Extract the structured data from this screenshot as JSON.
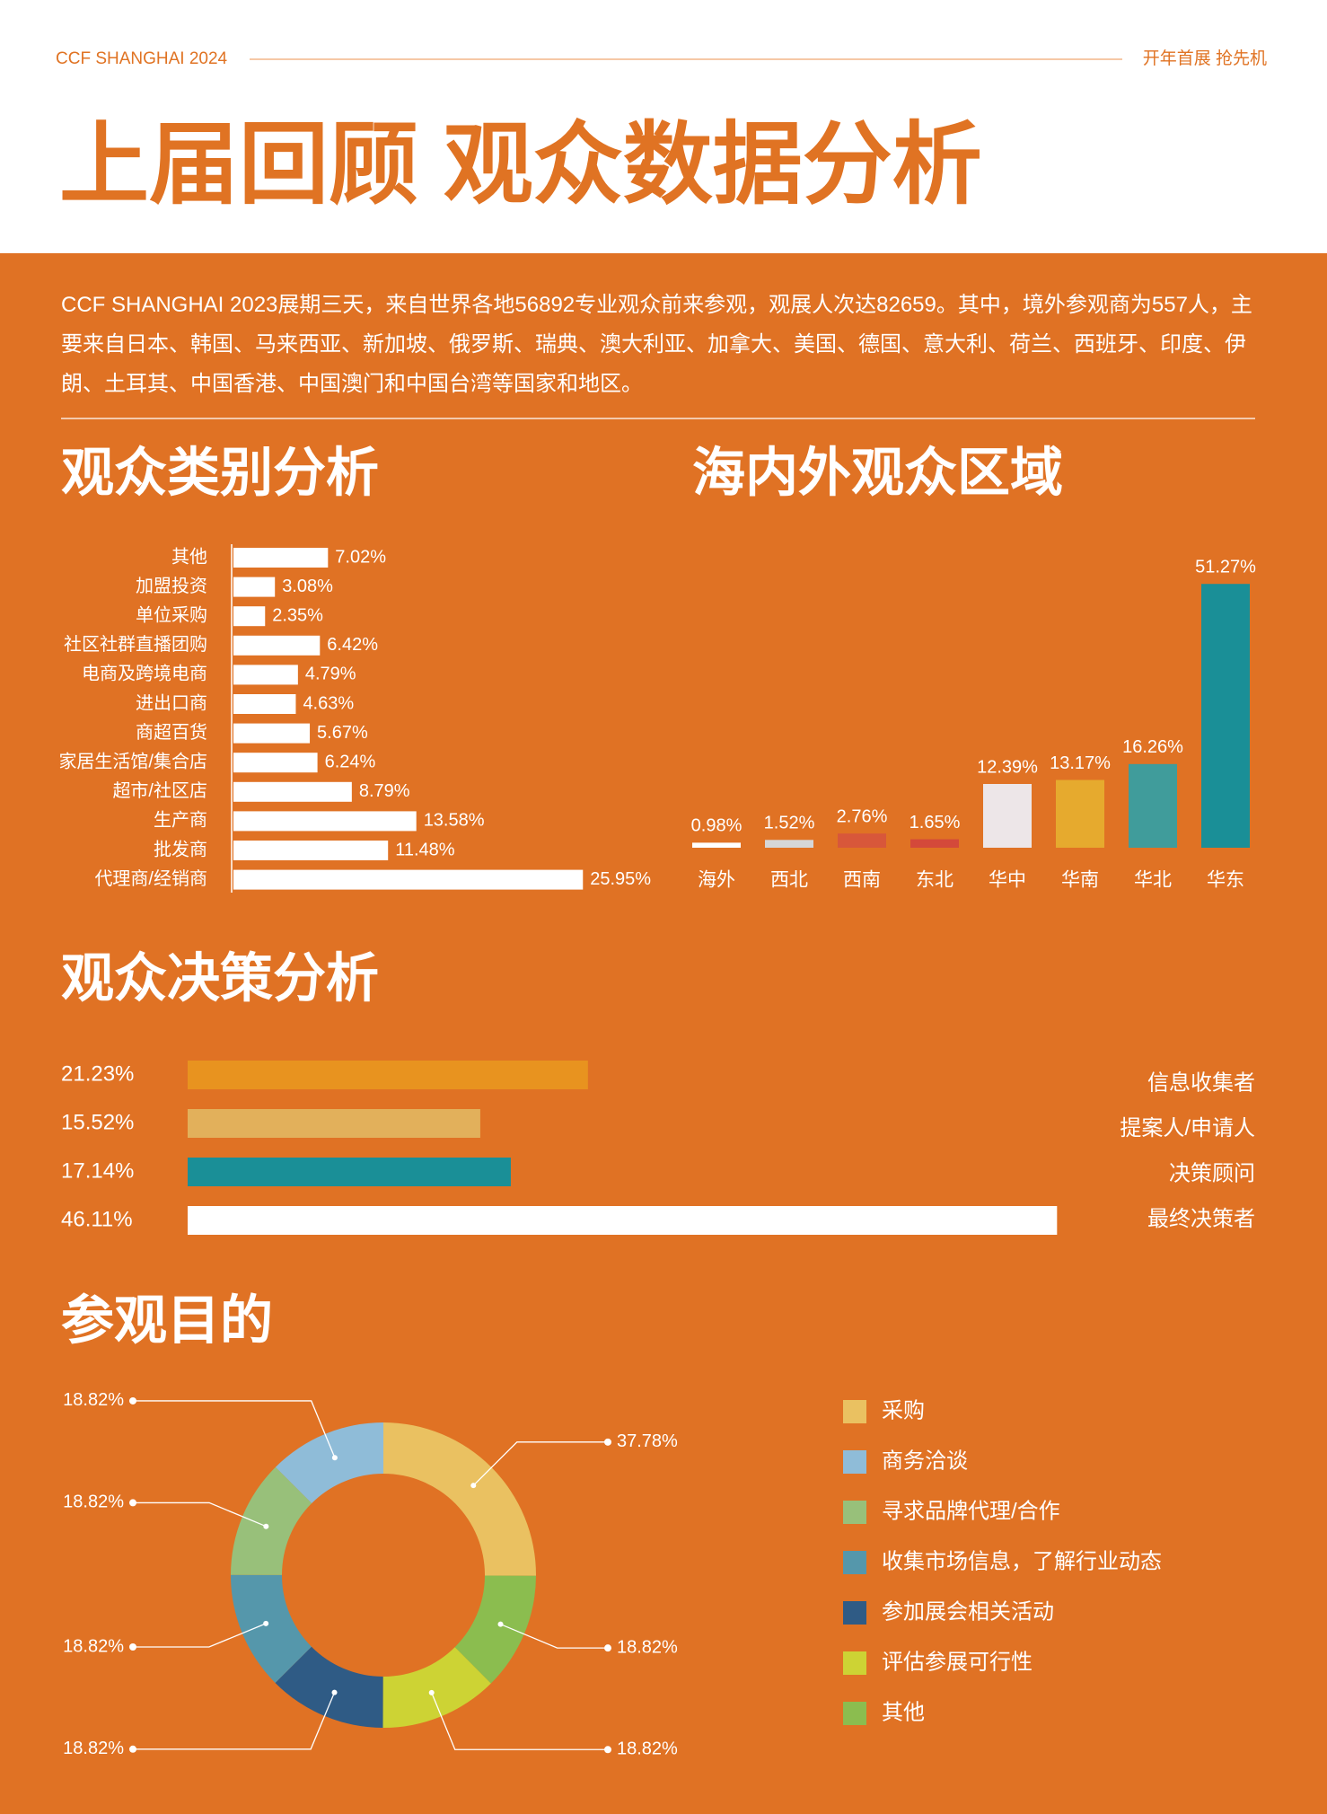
{
  "header": {
    "brand": "CCF SHANGHAI 2024",
    "slogan": "开年首展 抢先机",
    "title": "上届回顾 观众数据分析"
  },
  "intro": "CCF SHANGHAI 2023展期三天，来自世界各地56892专业观众前来参观，观展人次达82659。其中，境外参观商为557人，主要来自日本、韩国、马来西亚、新加坡、俄罗斯、瑞典、澳大利亚、加拿大、美国、德国、意大利、荷兰、西班牙、印度、伊朗、土耳其、中国香港、中国澳门和中国台湾等国家和地区。",
  "chart_data": [
    {
      "type": "barh",
      "title": "观众类别分析",
      "categories": [
        "其他",
        "加盟投资",
        "单位采购",
        "社区社群直播团购",
        "电商及跨境电商",
        "进出口商",
        "商超百货",
        "家居生活馆/集合店",
        "超市/社区店",
        "生产商",
        "批发商",
        "代理商/经销商"
      ],
      "values": [
        7.02,
        3.08,
        2.35,
        6.42,
        4.79,
        4.63,
        5.67,
        6.24,
        8.79,
        13.58,
        11.48,
        25.95
      ],
      "value_labels": [
        "7.02%",
        "3.08%",
        "2.35%",
        "6.42%",
        "4.79%",
        "4.63%",
        "5.67%",
        "6.24%",
        "8.79%",
        "13.58%",
        "11.48%",
        "25.95%"
      ],
      "color": "#ffffff"
    },
    {
      "type": "bar",
      "title": "海内外观众区域",
      "categories": [
        "海外",
        "西北",
        "西南",
        "东北",
        "华中",
        "华南",
        "华北",
        "华东"
      ],
      "values": [
        0.98,
        1.52,
        2.76,
        1.65,
        12.39,
        13.17,
        16.26,
        51.27
      ],
      "value_labels": [
        "0.98%",
        "1.52%",
        "2.76%",
        "1.65%",
        "12.39%",
        "13.17%",
        "16.26%",
        "51.27%"
      ],
      "colors": [
        "#ffffff",
        "#d6d6d6",
        "#d8573a",
        "#d4493a",
        "#ede6e8",
        "#e6aa2e",
        "#409c9b",
        "#1a8f97"
      ]
    },
    {
      "type": "barh",
      "title": "观众决策分析",
      "categories": [
        "信息收集者",
        "提案人/申请人",
        "决策顾问",
        "最终决策者"
      ],
      "values": [
        21.23,
        15.52,
        17.14,
        46.11
      ],
      "value_labels": [
        "21.23%",
        "15.52%",
        "17.14%",
        "46.11%"
      ],
      "colors": [
        "#e8931f",
        "#e2b05b",
        "#1a8f97",
        "#ffffff"
      ]
    },
    {
      "type": "donut",
      "title": "参观目的",
      "categories": [
        "采购",
        "商务洽谈",
        "寻求品牌代理/合作",
        "收集市场信息，了解行业动态",
        "参加展会相关活动",
        "评估参展可行性",
        "其他"
      ],
      "values": [
        37.78,
        18.82,
        18.82,
        18.82,
        18.82,
        18.82,
        18.82
      ],
      "value_labels": [
        "37.78%",
        "18.82%",
        "18.82%",
        "18.82%",
        "18.82%",
        "18.82%",
        "18.82%"
      ],
      "colors": [
        "#eac161",
        "#8fbcd8",
        "#98c07a",
        "#5597ab",
        "#2f5b85",
        "#cdd334",
        "#8bbd4f"
      ]
    }
  ]
}
